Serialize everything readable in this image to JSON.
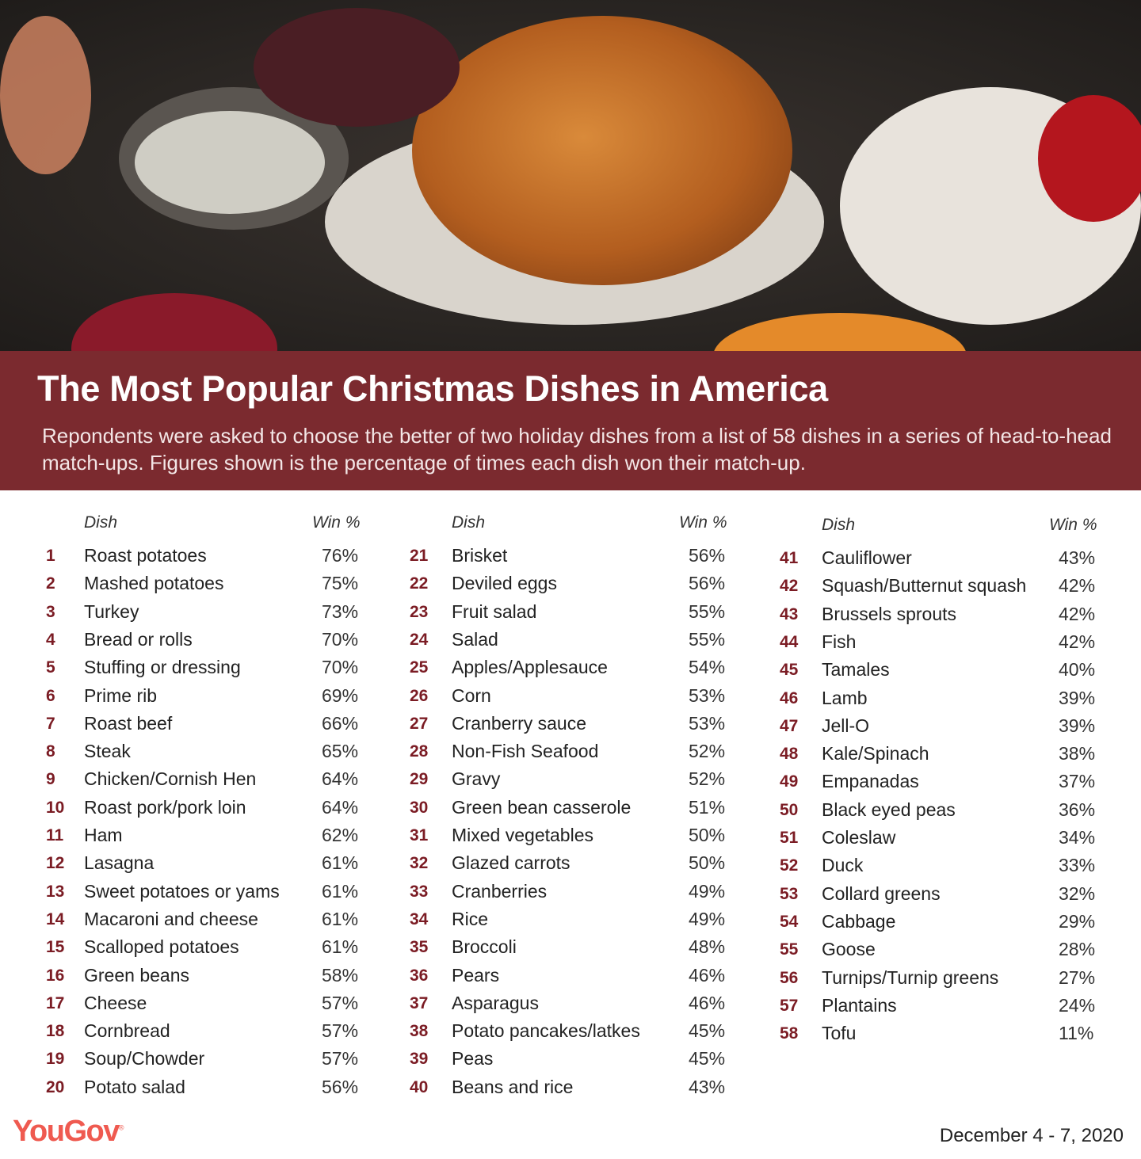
{
  "header": {
    "title": "The Most Popular Christmas Dishes in America",
    "subtitle": "Repondents were asked to choose the better of two holiday dishes from a list of 58 dishes in a series of head-to-head match-ups. Figures shown is the percentage of times each dish won their match-up."
  },
  "colors": {
    "banner": "#7b2a2f",
    "rank": "#7b1c24",
    "logo": "#ef5a50"
  },
  "chart_data": {
    "type": "table",
    "columns": [
      "Dish",
      "Win %"
    ],
    "rows": [
      {
        "rank": "1",
        "dish": "Roast potatoes",
        "win": "76%"
      },
      {
        "rank": "2",
        "dish": "Mashed potatoes",
        "win": "75%"
      },
      {
        "rank": "3",
        "dish": "Turkey",
        "win": "73%"
      },
      {
        "rank": "4",
        "dish": "Bread or rolls",
        "win": "70%"
      },
      {
        "rank": "5",
        "dish": "Stuffing or dressing",
        "win": "70%"
      },
      {
        "rank": "6",
        "dish": "Prime rib",
        "win": "69%"
      },
      {
        "rank": "7",
        "dish": "Roast beef",
        "win": "66%"
      },
      {
        "rank": "8",
        "dish": "Steak",
        "win": "65%"
      },
      {
        "rank": "9",
        "dish": "Chicken/Cornish Hen",
        "win": "64%"
      },
      {
        "rank": "10",
        "dish": "Roast pork/pork loin",
        "win": "64%"
      },
      {
        "rank": "11",
        "dish": "Ham",
        "win": "62%"
      },
      {
        "rank": "12",
        "dish": "Lasagna",
        "win": "61%"
      },
      {
        "rank": "13",
        "dish": "Sweet potatoes or yams",
        "win": "61%"
      },
      {
        "rank": "14",
        "dish": "Macaroni and cheese",
        "win": "61%"
      },
      {
        "rank": "15",
        "dish": "Scalloped potatoes",
        "win": "61%"
      },
      {
        "rank": "16",
        "dish": "Green beans",
        "win": "58%"
      },
      {
        "rank": "17",
        "dish": "Cheese",
        "win": "57%"
      },
      {
        "rank": "18",
        "dish": "Cornbread",
        "win": "57%"
      },
      {
        "rank": "19",
        "dish": "Soup/Chowder",
        "win": "57%"
      },
      {
        "rank": "20",
        "dish": "Potato salad",
        "win": "56%"
      },
      {
        "rank": "21",
        "dish": "Brisket",
        "win": "56%"
      },
      {
        "rank": "22",
        "dish": "Deviled eggs",
        "win": "56%"
      },
      {
        "rank": "23",
        "dish": "Fruit salad",
        "win": "55%"
      },
      {
        "rank": "24",
        "dish": "Salad",
        "win": "55%"
      },
      {
        "rank": "25",
        "dish": "Apples/Applesauce",
        "win": "54%"
      },
      {
        "rank": "26",
        "dish": "Corn",
        "win": "53%"
      },
      {
        "rank": "27",
        "dish": "Cranberry sauce",
        "win": "53%"
      },
      {
        "rank": "28",
        "dish": "Non-Fish Seafood",
        "win": "52%"
      },
      {
        "rank": "29",
        "dish": "Gravy",
        "win": "52%"
      },
      {
        "rank": "30",
        "dish": "Green bean casserole",
        "win": "51%"
      },
      {
        "rank": "31",
        "dish": "Mixed vegetables",
        "win": "50%"
      },
      {
        "rank": "32",
        "dish": "Glazed carrots",
        "win": "50%"
      },
      {
        "rank": "33",
        "dish": "Cranberries",
        "win": "49%"
      },
      {
        "rank": "34",
        "dish": "Rice",
        "win": "49%"
      },
      {
        "rank": "35",
        "dish": "Broccoli",
        "win": "48%"
      },
      {
        "rank": "36",
        "dish": "Pears",
        "win": "46%"
      },
      {
        "rank": "37",
        "dish": "Asparagus",
        "win": "46%"
      },
      {
        "rank": "38",
        "dish": "Potato pancakes/latkes",
        "win": "45%"
      },
      {
        "rank": "39",
        "dish": "Peas",
        "win": "45%"
      },
      {
        "rank": "40",
        "dish": "Beans and rice",
        "win": "43%"
      },
      {
        "rank": "41",
        "dish": "Cauliflower",
        "win": "43%"
      },
      {
        "rank": "42",
        "dish": "Squash/Butternut squash",
        "win": "42%"
      },
      {
        "rank": "43",
        "dish": "Brussels sprouts",
        "win": "42%"
      },
      {
        "rank": "44",
        "dish": "Fish",
        "win": "42%"
      },
      {
        "rank": "45",
        "dish": "Tamales",
        "win": "40%"
      },
      {
        "rank": "46",
        "dish": "Lamb",
        "win": "39%"
      },
      {
        "rank": "47",
        "dish": "Jell-O",
        "win": "39%"
      },
      {
        "rank": "48",
        "dish": "Kale/Spinach",
        "win": "38%"
      },
      {
        "rank": "49",
        "dish": "Empanadas",
        "win": "37%"
      },
      {
        "rank": "50",
        "dish": "Black eyed peas",
        "win": "36%"
      },
      {
        "rank": "51",
        "dish": "Coleslaw",
        "win": "34%"
      },
      {
        "rank": "52",
        "dish": "Duck",
        "win": "33%"
      },
      {
        "rank": "53",
        "dish": "Collard greens",
        "win": "32%"
      },
      {
        "rank": "54",
        "dish": "Cabbage",
        "win": "29%"
      },
      {
        "rank": "55",
        "dish": "Goose",
        "win": "28%"
      },
      {
        "rank": "56",
        "dish": "Turnips/Turnip greens",
        "win": "27%"
      },
      {
        "rank": "57",
        "dish": "Plantains",
        "win": "24%"
      },
      {
        "rank": "58",
        "dish": "Tofu",
        "win": "11%"
      }
    ]
  },
  "footer": {
    "logo": "YouGov",
    "date": "December 4 - 7, 2020"
  }
}
